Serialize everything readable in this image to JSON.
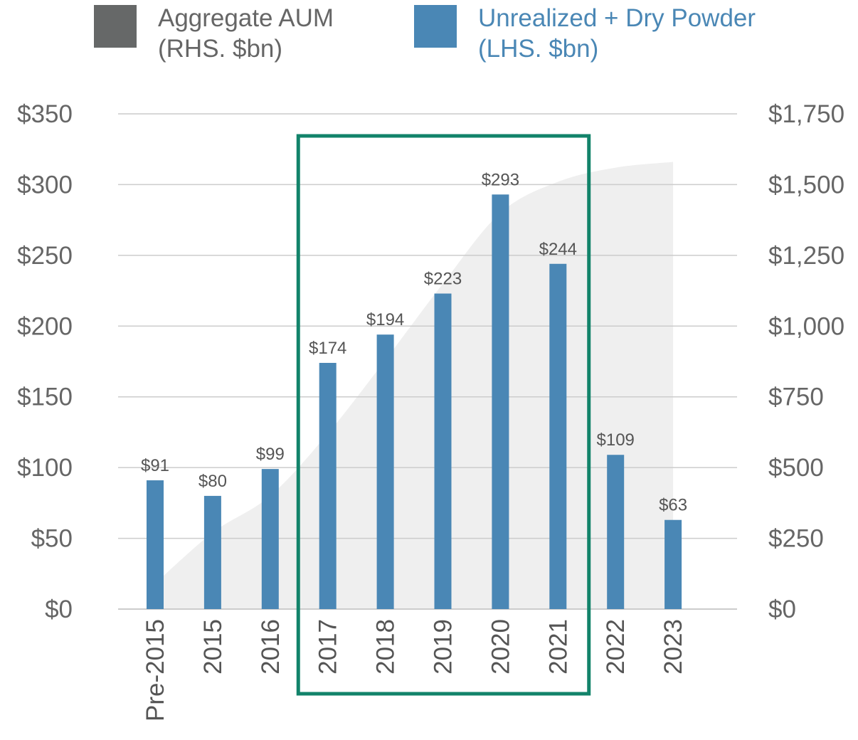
{
  "colors": {
    "bar": "#4a87b5",
    "area": "#efefef",
    "aum_swatch": "#666868",
    "highlight_box": "#12836a",
    "grid": "#cccccc",
    "axis_text": "#666666",
    "legend_blue_text": "#4a87b5",
    "legend_gray_text": "#666666"
  },
  "legend": {
    "aum": {
      "line1": "Aggregate AUM",
      "line2": "(RHS. $bn)"
    },
    "bars": {
      "line1": "Unrealized + Dry Powder",
      "line2": "(LHS. $bn)"
    }
  },
  "chart_data": {
    "type": "bar",
    "title": "",
    "xlabel": "",
    "ylabel": "",
    "categories": [
      "Pre-2015",
      "2015",
      "2016",
      "2017",
      "2018",
      "2019",
      "2020",
      "2021",
      "2022",
      "2023"
    ],
    "series": [
      {
        "name": "Unrealized + Dry Powder (LHS. $bn)",
        "type": "bar",
        "axis": "left",
        "values": [
          91,
          80,
          99,
          174,
          194,
          223,
          293,
          244,
          109,
          63
        ],
        "labels": [
          "$91",
          "$80",
          "$99",
          "$174",
          "$194",
          "$223",
          "$293",
          "$244",
          "$109",
          "$63"
        ]
      },
      {
        "name": "Aggregate AUM (RHS. $bn)",
        "type": "area",
        "axis": "right",
        "values": [
          90,
          270,
          400,
          620,
          880,
          1150,
          1400,
          1510,
          1560,
          1580
        ]
      }
    ],
    "y_left": {
      "range": [
        0,
        350
      ],
      "ticks": [
        0,
        50,
        100,
        150,
        200,
        250,
        300,
        350
      ],
      "tick_labels": [
        "$0",
        "$50",
        "$100",
        "$150",
        "$200",
        "$250",
        "$300",
        "$350"
      ]
    },
    "y_right": {
      "range": [
        0,
        1750
      ],
      "ticks": [
        0,
        250,
        500,
        750,
        1000,
        1250,
        1500,
        1750
      ],
      "tick_labels": [
        "$0",
        "$250",
        "$500",
        "$750",
        "$1,000",
        "$1,250",
        "$1,500",
        "$1,750"
      ]
    },
    "grid": true,
    "highlight": {
      "from_category": "2017",
      "to_category": "2021"
    },
    "legend_position": "top-left"
  }
}
